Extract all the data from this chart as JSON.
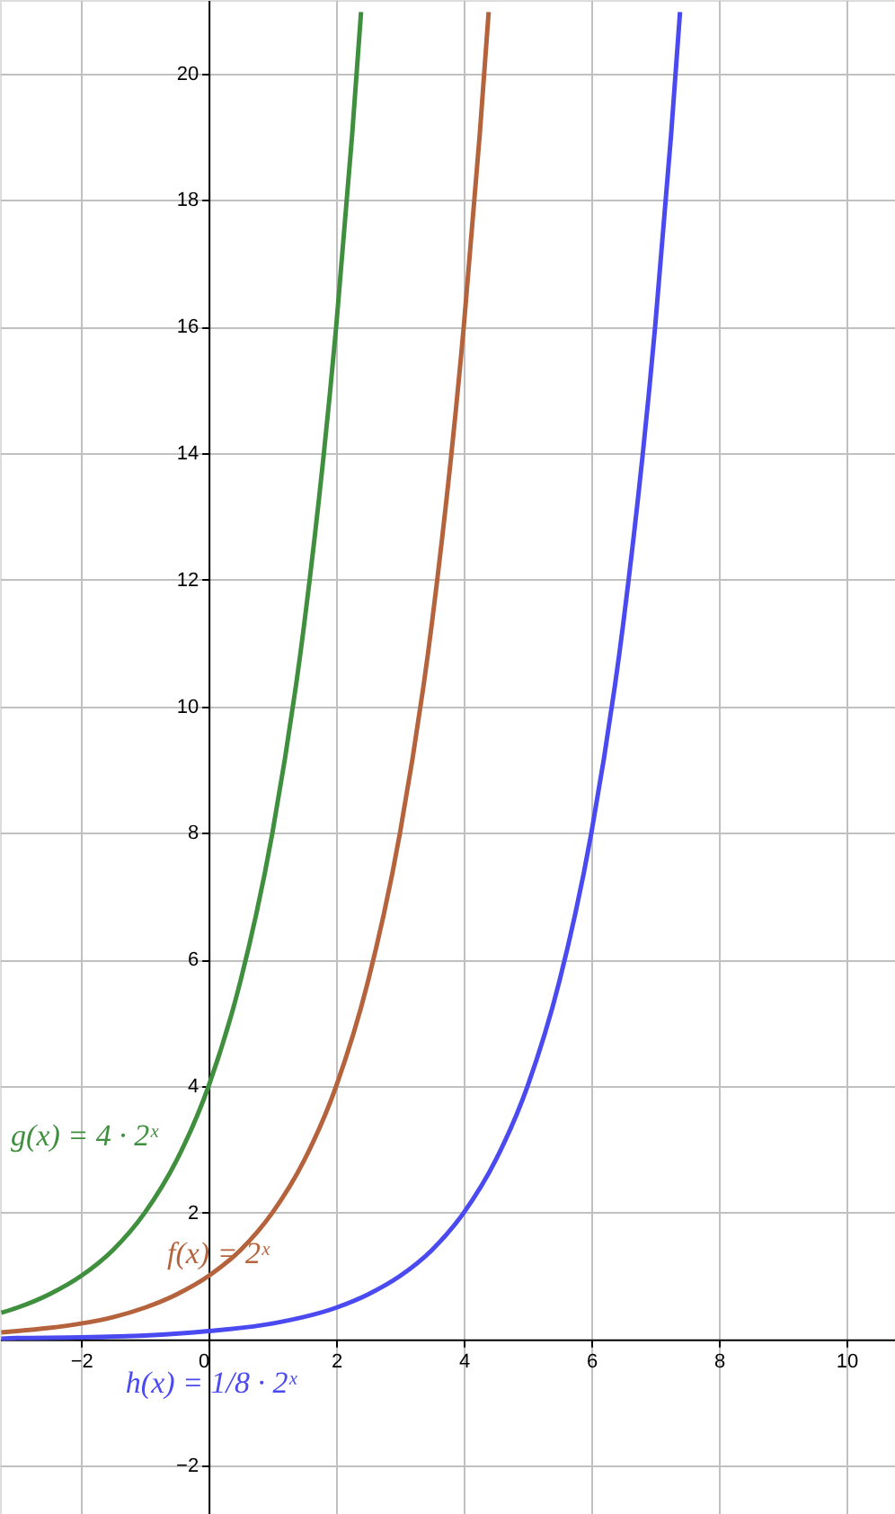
{
  "chart_data": {
    "type": "line",
    "xlim": [
      -3.27,
      10.76
    ],
    "ylim": [
      -2.76,
      21.16
    ],
    "xticks": [
      -2,
      0,
      2,
      4,
      6,
      8,
      10
    ],
    "yticks": [
      -2,
      2,
      4,
      6,
      8,
      10,
      12,
      14,
      16,
      18,
      20
    ],
    "grid": true,
    "marker": "none",
    "line_style": "solid",
    "series": [
      {
        "name": "g(x) = 4 · 2ˣ",
        "color": "#3f8f3f",
        "x": [
          -3.25,
          -3,
          -2.5,
          -2,
          -1.5,
          -1,
          -0.5,
          0,
          0.5,
          1,
          1.5,
          2,
          2.25,
          2.39
        ],
        "values": [
          0.42,
          0.5,
          0.71,
          1,
          1.41,
          2,
          2.83,
          4,
          5.66,
          8,
          11.31,
          16,
          19.03,
          20.97
        ]
      },
      {
        "name": "f(x) = 2ˣ",
        "color": "#b5633c",
        "x": [
          -3.25,
          -3,
          -2.5,
          -2,
          -1.5,
          -1,
          -0.5,
          0,
          0.5,
          1,
          1.5,
          2,
          2.5,
          3,
          3.5,
          4,
          4.25,
          4.39
        ],
        "values": [
          0.11,
          0.13,
          0.18,
          0.25,
          0.35,
          0.5,
          0.71,
          1,
          1.41,
          2,
          2.83,
          4,
          5.66,
          8,
          11.31,
          16,
          19.03,
          20.97
        ]
      },
      {
        "name": "h(x) = 1/8 · 2ˣ",
        "color": "#4a4af0",
        "x": [
          -3.25,
          -3,
          -2,
          -1,
          0,
          1,
          2,
          2.5,
          3,
          3.5,
          4,
          4.5,
          5,
          5.5,
          6,
          6.5,
          7,
          7.25,
          7.39
        ],
        "values": [
          0.01,
          0.02,
          0.03,
          0.06,
          0.13,
          0.25,
          0.5,
          0.71,
          1,
          1.41,
          2,
          2.83,
          4,
          5.66,
          8,
          11.31,
          16,
          19.03,
          20.97
        ]
      }
    ]
  }
}
